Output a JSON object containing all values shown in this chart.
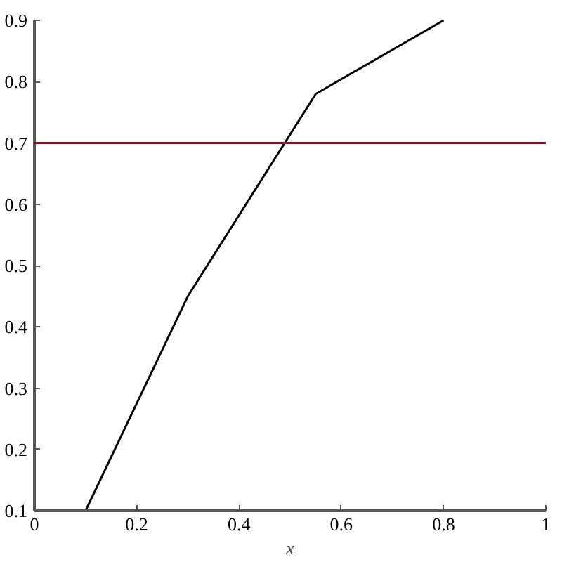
{
  "chart_data": {
    "type": "line",
    "xlabel": "x",
    "x": [
      0.1,
      0.3,
      0.55,
      0.8
    ],
    "series": [
      {
        "color": "#000000",
        "values": [
          0.1,
          0.45,
          0.78,
          0.9
        ]
      }
    ],
    "xlim": [
      0,
      1
    ],
    "ylim": [
      0.1,
      0.9
    ],
    "xticks": [
      0,
      0.2,
      0.4,
      0.6,
      0.8,
      1
    ],
    "yticks": [
      0.1,
      0.2,
      0.3,
      0.4,
      0.5,
      0.6,
      0.7,
      0.8,
      0.9
    ],
    "ref_lines": [
      {
        "axis": "y",
        "value": 0.7,
        "color": "#80102a"
      }
    ],
    "marker": "none",
    "line_style": "solid"
  }
}
